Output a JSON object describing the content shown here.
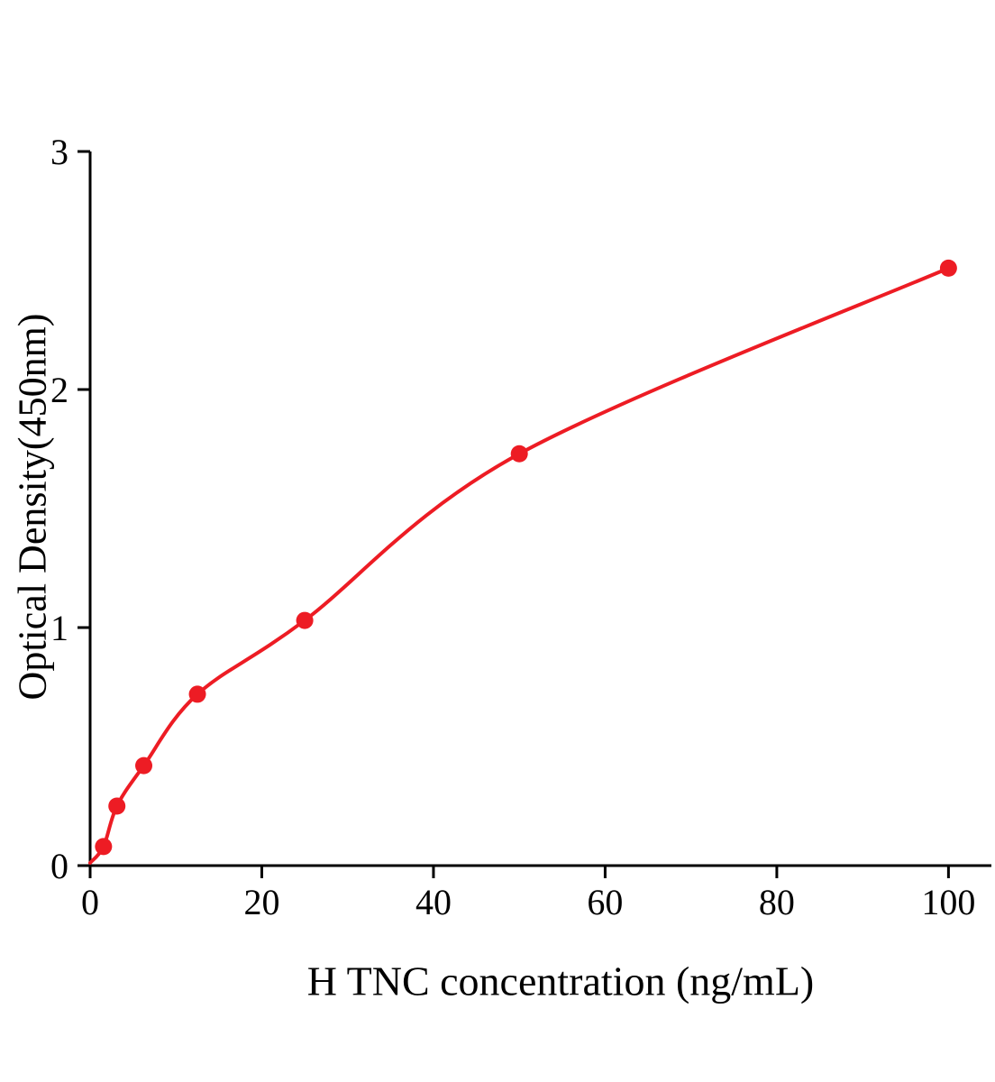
{
  "figure": {
    "background": "#ffffff"
  },
  "chart_data": {
    "type": "scatter",
    "title": "",
    "xlabel": "H TNC concentration (ng/mL)",
    "ylabel": "Optical Density(450nm)",
    "x": [
      1.56,
      3.12,
      6.25,
      12.5,
      25,
      50,
      100
    ],
    "y": [
      0.08,
      0.25,
      0.42,
      0.72,
      1.03,
      1.73,
      2.51
    ],
    "fit_curve": true,
    "xlim": [
      0,
      105
    ],
    "ylim": [
      0,
      3
    ],
    "xticks": [
      0,
      20,
      40,
      60,
      80,
      100
    ],
    "yticks": [
      0,
      1,
      2,
      3
    ],
    "grid": false,
    "legend": "none",
    "point_color": "#ed1c24",
    "line_color": "#ed1c24",
    "axis_color": "#000000"
  }
}
